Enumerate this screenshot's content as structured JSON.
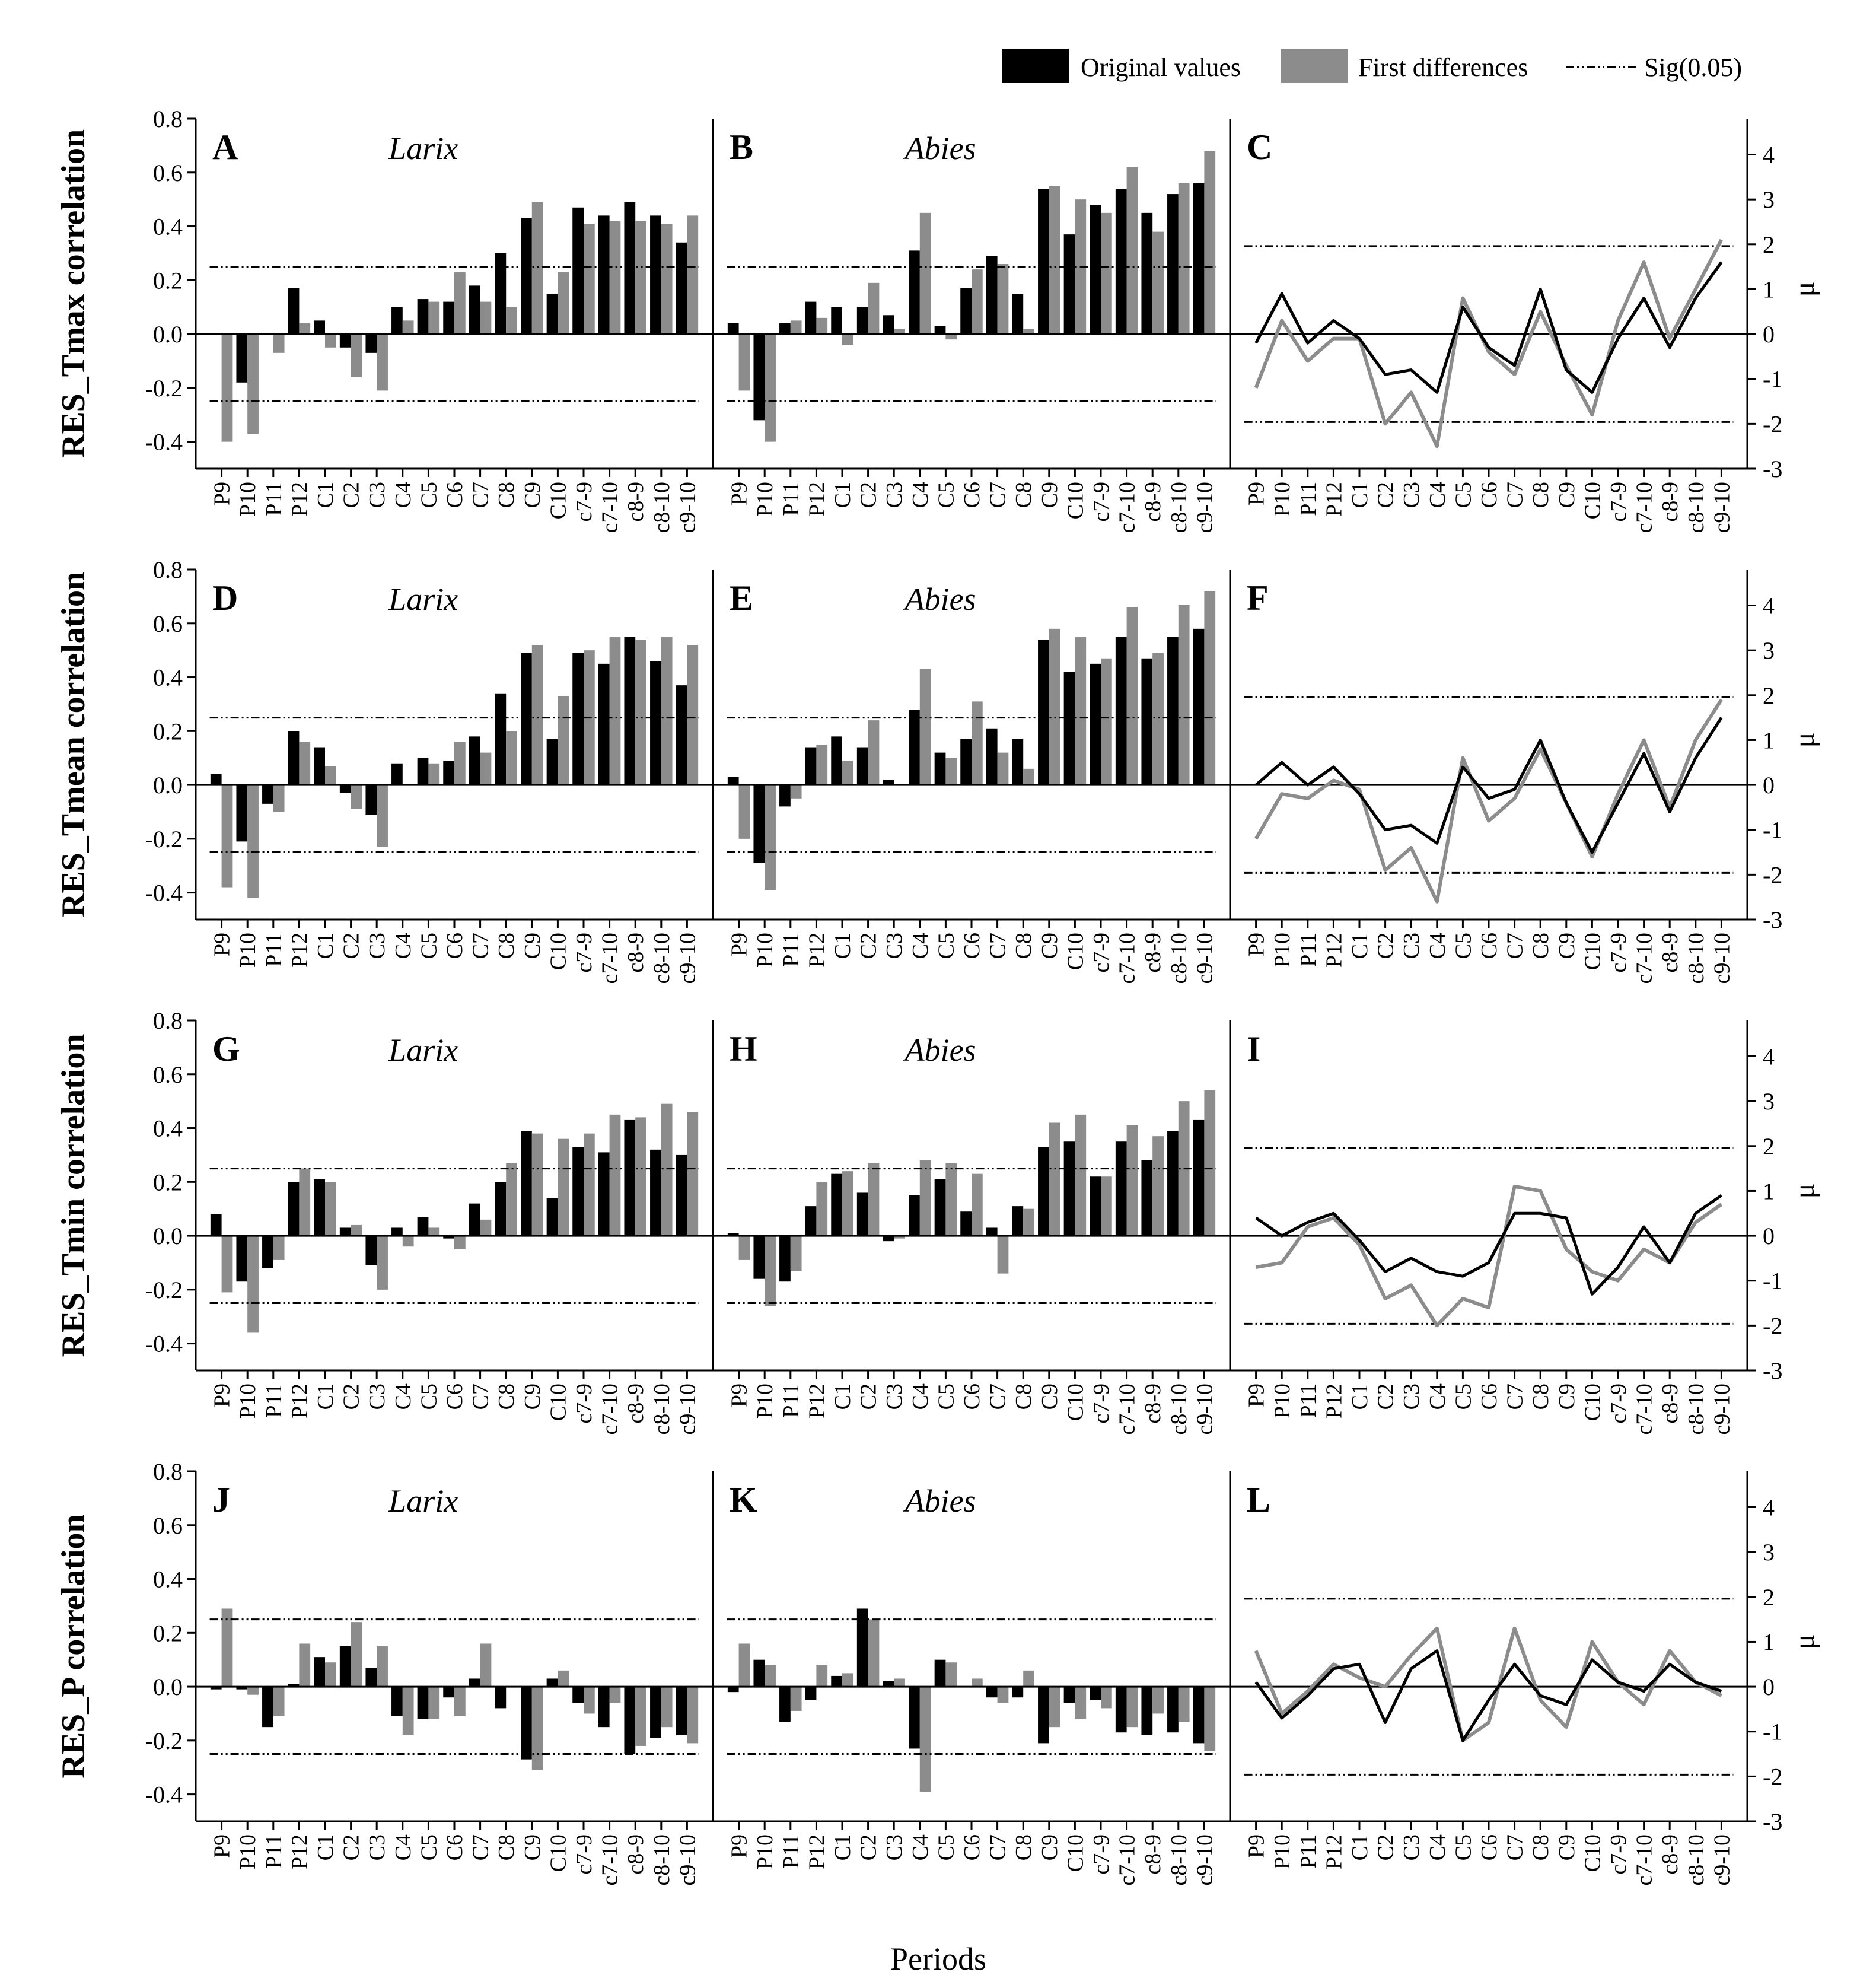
{
  "legend": {
    "original_label": "Original values",
    "first_diff_label": "First differences",
    "sig_label": "Sig(0.05)"
  },
  "xlabel": "Periods",
  "colors": {
    "original": "#000000",
    "first_diff": "#8c8c8c",
    "axis": "#000000"
  },
  "chart_data": {
    "type": "bar",
    "categories": [
      "P9",
      "P10",
      "P11",
      "P12",
      "C1",
      "C2",
      "C3",
      "C4",
      "C5",
      "C6",
      "C7",
      "C8",
      "C9",
      "C10",
      "c7-9",
      "c7-10",
      "c8-9",
      "c8-10",
      "c9-10"
    ],
    "bar_ylim": [
      -0.5,
      0.8
    ],
    "bar_yticks": [
      -0.4,
      -0.2,
      0.0,
      0.2,
      0.4,
      0.6,
      0.8
    ],
    "bar_sig": 0.25,
    "line_ylim": [
      -3,
      4.8
    ],
    "line_yticks": [
      -3,
      -2,
      -1,
      0,
      1,
      2,
      3,
      4
    ],
    "line_sig": 1.96,
    "line_ylabel": "μ",
    "rows": [
      {
        "ylabel": "RES_Tmax correlation",
        "panels": [
          {
            "letter": "A",
            "species": "Larix",
            "kind": "bar",
            "original": [
              0.0,
              -0.18,
              0.0,
              0.17,
              0.05,
              -0.05,
              -0.07,
              0.1,
              0.13,
              0.12,
              0.18,
              0.3,
              0.43,
              0.15,
              0.47,
              0.44,
              0.49,
              0.44,
              0.34
            ],
            "first_diff": [
              -0.4,
              -0.37,
              -0.07,
              0.04,
              -0.05,
              -0.16,
              -0.21,
              0.05,
              0.12,
              0.23,
              0.12,
              0.1,
              0.49,
              0.23,
              0.41,
              0.42,
              0.42,
              0.41,
              0.44
            ]
          },
          {
            "letter": "B",
            "species": "Abies",
            "kind": "bar",
            "original": [
              0.04,
              -0.32,
              0.04,
              0.12,
              0.1,
              0.1,
              0.07,
              0.31,
              0.03,
              0.17,
              0.29,
              0.15,
              0.54,
              0.37,
              0.48,
              0.54,
              0.45,
              0.52,
              0.56
            ],
            "first_diff": [
              -0.21,
              -0.4,
              0.05,
              0.06,
              -0.04,
              0.19,
              0.02,
              0.45,
              -0.02,
              0.24,
              0.26,
              0.02,
              0.55,
              0.5,
              0.45,
              0.62,
              0.38,
              0.56,
              0.68
            ]
          },
          {
            "letter": "C",
            "kind": "line",
            "original": [
              -0.2,
              0.9,
              -0.2,
              0.3,
              -0.1,
              -0.9,
              -0.8,
              -1.3,
              0.6,
              -0.3,
              -0.7,
              1.0,
              -0.8,
              -1.3,
              -0.1,
              0.8,
              -0.3,
              0.8,
              1.6
            ],
            "first_diff": [
              -1.2,
              0.3,
              -0.6,
              -0.1,
              -0.1,
              -2.0,
              -1.3,
              -2.5,
              0.8,
              -0.4,
              -0.9,
              0.5,
              -0.7,
              -1.8,
              0.3,
              1.6,
              -0.1,
              1.0,
              2.1
            ]
          }
        ]
      },
      {
        "ylabel": "RES_Tmean correlation",
        "panels": [
          {
            "letter": "D",
            "species": "Larix",
            "kind": "bar",
            "original": [
              0.04,
              -0.21,
              -0.07,
              0.2,
              0.14,
              -0.03,
              -0.11,
              0.08,
              0.1,
              0.09,
              0.18,
              0.34,
              0.49,
              0.17,
              0.49,
              0.45,
              0.55,
              0.46,
              0.37
            ],
            "first_diff": [
              -0.38,
              -0.42,
              -0.1,
              0.16,
              0.07,
              -0.09,
              -0.23,
              0.0,
              0.08,
              0.16,
              0.12,
              0.2,
              0.52,
              0.33,
              0.5,
              0.55,
              0.54,
              0.55,
              0.52
            ]
          },
          {
            "letter": "E",
            "species": "Abies",
            "kind": "bar",
            "original": [
              0.03,
              -0.29,
              -0.08,
              0.14,
              0.18,
              0.14,
              0.02,
              0.28,
              0.12,
              0.17,
              0.21,
              0.17,
              0.54,
              0.42,
              0.45,
              0.55,
              0.47,
              0.55,
              0.58
            ],
            "first_diff": [
              -0.2,
              -0.39,
              -0.05,
              0.15,
              0.09,
              0.24,
              0.0,
              0.43,
              0.1,
              0.31,
              0.12,
              0.06,
              0.58,
              0.55,
              0.47,
              0.66,
              0.49,
              0.67,
              0.72
            ]
          },
          {
            "letter": "F",
            "kind": "line",
            "original": [
              0.0,
              0.5,
              0.0,
              0.4,
              -0.2,
              -1.0,
              -0.9,
              -1.3,
              0.4,
              -0.3,
              -0.1,
              1.0,
              -0.4,
              -1.5,
              -0.4,
              0.7,
              -0.6,
              0.6,
              1.5
            ],
            "first_diff": [
              -1.2,
              -0.2,
              -0.3,
              0.1,
              -0.1,
              -1.9,
              -1.4,
              -2.6,
              0.6,
              -0.8,
              -0.3,
              0.8,
              -0.4,
              -1.6,
              -0.2,
              1.0,
              -0.5,
              1.0,
              1.9
            ]
          }
        ]
      },
      {
        "ylabel": "RES_Tmin correlation",
        "panels": [
          {
            "letter": "G",
            "species": "Larix",
            "kind": "bar",
            "original": [
              0.08,
              -0.17,
              -0.12,
              0.2,
              0.21,
              0.03,
              -0.11,
              0.03,
              0.07,
              -0.01,
              0.12,
              0.2,
              0.39,
              0.14,
              0.33,
              0.31,
              0.43,
              0.32,
              0.3
            ],
            "first_diff": [
              -0.21,
              -0.36,
              -0.09,
              0.25,
              0.2,
              0.04,
              -0.2,
              -0.04,
              0.03,
              -0.05,
              0.06,
              0.27,
              0.38,
              0.36,
              0.38,
              0.45,
              0.44,
              0.49,
              0.46
            ]
          },
          {
            "letter": "H",
            "species": "Abies",
            "kind": "bar",
            "original": [
              0.01,
              -0.16,
              -0.17,
              0.11,
              0.23,
              0.16,
              -0.02,
              0.15,
              0.21,
              0.09,
              0.03,
              0.11,
              0.33,
              0.35,
              0.22,
              0.35,
              0.28,
              0.39,
              0.43
            ],
            "first_diff": [
              -0.09,
              -0.26,
              -0.13,
              0.2,
              0.24,
              0.27,
              -0.01,
              0.28,
              0.27,
              0.23,
              -0.14,
              0.1,
              0.42,
              0.45,
              0.22,
              0.41,
              0.37,
              0.5,
              0.54
            ]
          },
          {
            "letter": "I",
            "kind": "line",
            "original": [
              0.4,
              0.0,
              0.3,
              0.5,
              -0.1,
              -0.8,
              -0.5,
              -0.8,
              -0.9,
              -0.6,
              0.5,
              0.5,
              0.4,
              -1.3,
              -0.7,
              0.2,
              -0.6,
              0.5,
              0.9
            ],
            "first_diff": [
              -0.7,
              -0.6,
              0.2,
              0.4,
              -0.2,
              -1.4,
              -1.1,
              -2.0,
              -1.4,
              -1.6,
              1.1,
              1.0,
              -0.3,
              -0.8,
              -1.0,
              -0.3,
              -0.6,
              0.3,
              0.7
            ]
          }
        ]
      },
      {
        "ylabel": "RES_P correlation",
        "panels": [
          {
            "letter": "J",
            "species": "Larix",
            "kind": "bar",
            "original": [
              -0.01,
              -0.01,
              -0.15,
              0.01,
              0.11,
              0.15,
              0.07,
              -0.11,
              -0.12,
              -0.04,
              0.03,
              -0.08,
              -0.27,
              0.03,
              -0.06,
              -0.15,
              -0.25,
              -0.19,
              -0.18
            ],
            "first_diff": [
              0.29,
              -0.03,
              -0.11,
              0.16,
              0.09,
              0.24,
              0.15,
              -0.18,
              -0.12,
              -0.11,
              0.16,
              0.0,
              -0.31,
              0.06,
              -0.1,
              -0.06,
              -0.22,
              -0.15,
              -0.21
            ]
          },
          {
            "letter": "K",
            "species": "Abies",
            "kind": "bar",
            "original": [
              -0.02,
              0.1,
              -0.13,
              -0.05,
              0.04,
              0.29,
              0.02,
              -0.23,
              0.1,
              0.0,
              -0.04,
              -0.04,
              -0.21,
              -0.06,
              -0.05,
              -0.17,
              -0.18,
              -0.17,
              -0.21
            ],
            "first_diff": [
              0.16,
              0.08,
              -0.09,
              0.08,
              0.05,
              0.25,
              0.03,
              -0.39,
              0.09,
              0.03,
              -0.06,
              0.06,
              -0.15,
              -0.12,
              -0.08,
              -0.15,
              -0.1,
              -0.13,
              -0.24
            ]
          },
          {
            "letter": "L",
            "kind": "line",
            "original": [
              0.1,
              -0.7,
              -0.2,
              0.4,
              0.5,
              -0.8,
              0.4,
              0.8,
              -1.2,
              -0.3,
              0.5,
              -0.2,
              -0.4,
              0.6,
              0.1,
              -0.1,
              0.5,
              0.1,
              -0.1
            ],
            "first_diff": [
              0.8,
              -0.6,
              -0.1,
              0.5,
              0.2,
              0.0,
              0.7,
              1.3,
              -1.2,
              -0.8,
              1.3,
              -0.3,
              -0.9,
              1.0,
              0.1,
              -0.4,
              0.8,
              0.1,
              -0.2
            ]
          }
        ]
      }
    ]
  }
}
